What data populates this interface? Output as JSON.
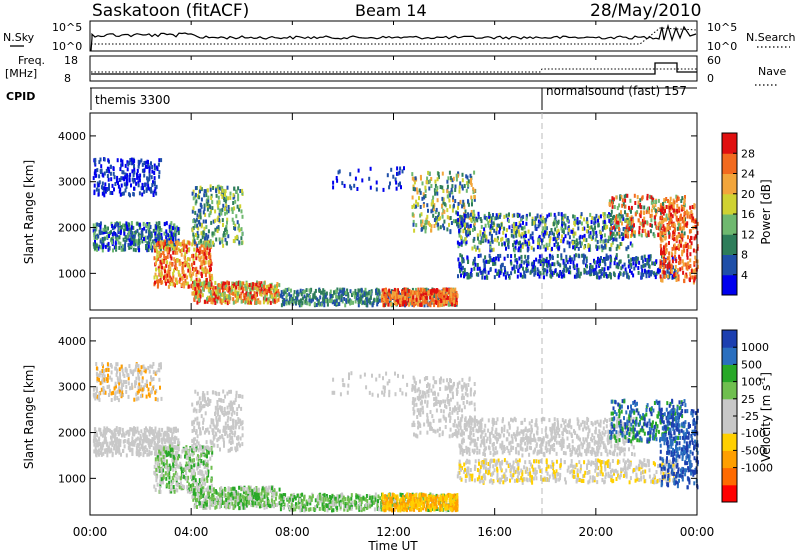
{
  "header": {
    "station": "Saskatoon (fitACF)",
    "beam": "Beam 14",
    "date": "28/May/2010"
  },
  "params": {
    "nsky_label": "N.Sky",
    "nsearch_label": "N.Search",
    "freq_label_1": "Freq.",
    "freq_label_2": "[MHz]",
    "nave_label": "Nave",
    "cpid_label": "CPID",
    "nsky_ticks": [
      "10^5",
      "10^0"
    ],
    "nsearch_ticks": [
      "10^5",
      "10^0"
    ],
    "freq_ticks": [
      "18",
      "8"
    ],
    "nave_ticks": [
      "60",
      "0"
    ],
    "cpid_segments": [
      "themis 3300",
      "normalsound (fast)  157"
    ]
  },
  "colors": {
    "power_scale": [
      "#0000ee",
      "#1f4fa8",
      "#2e7d5a",
      "#6fb86f",
      "#cfd232",
      "#f2a53b",
      "#f26a1f",
      "#e01010"
    ],
    "velocity_scale": [
      "#ff0000",
      "#ff6a00",
      "#ff9f00",
      "#ffd000",
      "#c8c8c8",
      "#c8c8c8",
      "#6fbf4f",
      "#28a828",
      "#2a6fbf",
      "#1c3fb0"
    ]
  },
  "chart_data": [
    {
      "type": "heatmap",
      "panel": "power",
      "ylabel": "Slant Range [km]",
      "xlabel": "",
      "yticks": [
        "1000",
        "2000",
        "3000",
        "4000"
      ],
      "xticks": [
        "00:00",
        "04:00",
        "08:00",
        "12:00",
        "16:00",
        "20:00",
        "00:00"
      ],
      "ylim": [
        200,
        4500
      ],
      "colorbar_label": "Power [dB]",
      "colorbar_ticks": [
        "4",
        "8",
        "12",
        "16",
        "20",
        "24",
        "28"
      ],
      "colorbar_range": [
        0,
        32
      ]
    },
    {
      "type": "heatmap",
      "panel": "velocity",
      "ylabel": "Slant Range [km]",
      "xlabel": "Time UT",
      "yticks": [
        "1000",
        "2000",
        "3000",
        "4000"
      ],
      "xticks": [
        "00:00",
        "04:00",
        "08:00",
        "12:00",
        "16:00",
        "20:00",
        "00:00"
      ],
      "ylim": [
        200,
        4500
      ],
      "colorbar_label": "Velocity [m s^-1]",
      "colorbar_ticks": [
        "1000",
        "500",
        "100",
        "25",
        "-25",
        "-100",
        "-500",
        "-1000"
      ]
    }
  ]
}
